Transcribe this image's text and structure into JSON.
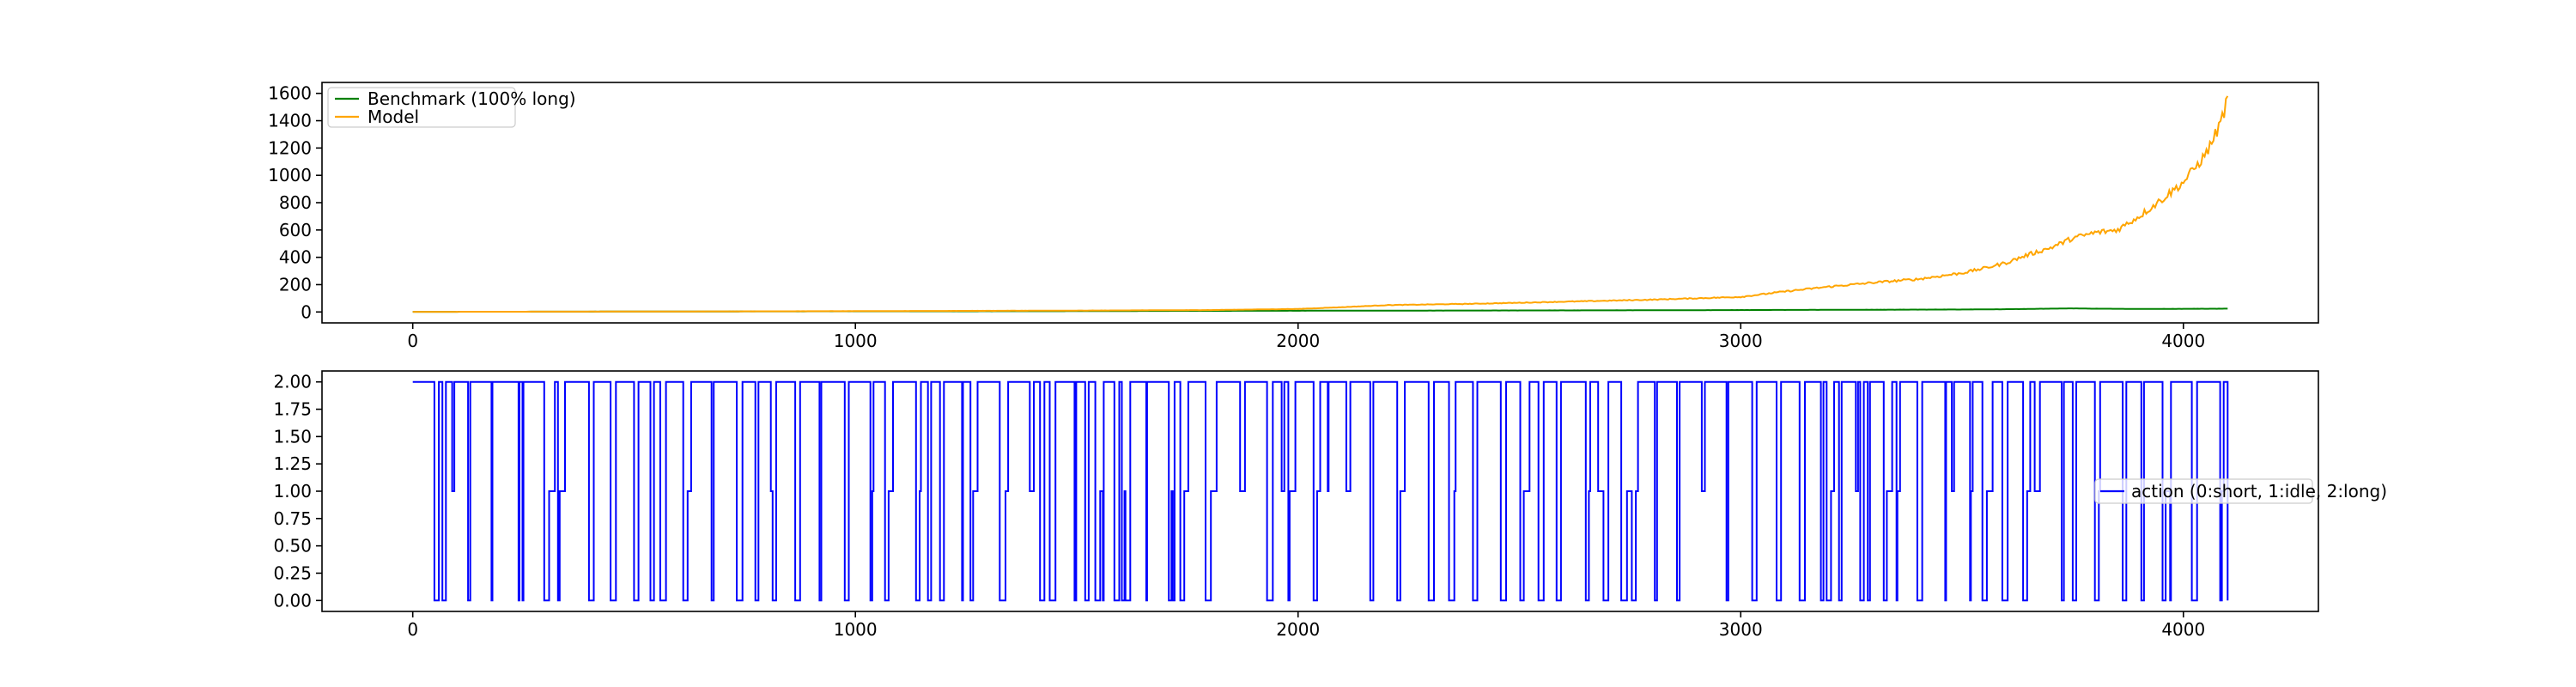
{
  "chart_data": [
    {
      "type": "line",
      "title": "",
      "xlabel": "",
      "ylabel": "",
      "xlim": [
        -205,
        4305
      ],
      "ylim": [
        -80,
        1680
      ],
      "xticks": [
        0,
        1000,
        2000,
        3000,
        4000
      ],
      "yticks": [
        0,
        200,
        400,
        600,
        800,
        1000,
        1200,
        1400,
        1600
      ],
      "grid": false,
      "legend_position": "upper-left",
      "series": [
        {
          "name": "Benchmark (100% long)",
          "color": "#008000",
          "x": [
            0,
            250,
            500,
            750,
            1000,
            1250,
            1500,
            1750,
            2000,
            2250,
            2500,
            2750,
            3000,
            3250,
            3500,
            3600,
            3700,
            3750,
            3800,
            3900,
            4000,
            4100
          ],
          "y": [
            1,
            2,
            3,
            4,
            5,
            5,
            6,
            8,
            9,
            10,
            11,
            12,
            14,
            16,
            18,
            20,
            24,
            26,
            24,
            22,
            23,
            24
          ]
        },
        {
          "name": "Model",
          "color": "#ffa500",
          "x": [
            0,
            500,
            1000,
            1500,
            1800,
            2000,
            2100,
            2200,
            2400,
            2600,
            2800,
            3000,
            3100,
            3200,
            3300,
            3400,
            3500,
            3550,
            3600,
            3650,
            3700,
            3750,
            3800,
            3850,
            3900,
            3950,
            4000,
            4050,
            4080,
            4100
          ],
          "y": [
            1,
            3,
            6,
            10,
            14,
            22,
            35,
            50,
            60,
            75,
            90,
            110,
            150,
            185,
            215,
            240,
            285,
            320,
            360,
            420,
            470,
            540,
            580,
            600,
            700,
            820,
            950,
            1150,
            1350,
            1550
          ]
        }
      ]
    },
    {
      "type": "line",
      "title": "",
      "xlabel": "",
      "ylabel": "",
      "xlim": [
        -205,
        4305
      ],
      "ylim": [
        -0.1,
        2.1
      ],
      "xticks": [
        0,
        1000,
        2000,
        3000,
        4000
      ],
      "yticks": [
        "0.00",
        "0.25",
        "0.50",
        "0.75",
        "1.00",
        "1.25",
        "1.50",
        "1.75",
        "2.00"
      ],
      "grid": false,
      "legend_position": "center-right",
      "series": [
        {
          "name": "action (0:short, 1:idle, 2:long)",
          "color": "#0000ff",
          "x_end": 4100
        }
      ]
    }
  ]
}
